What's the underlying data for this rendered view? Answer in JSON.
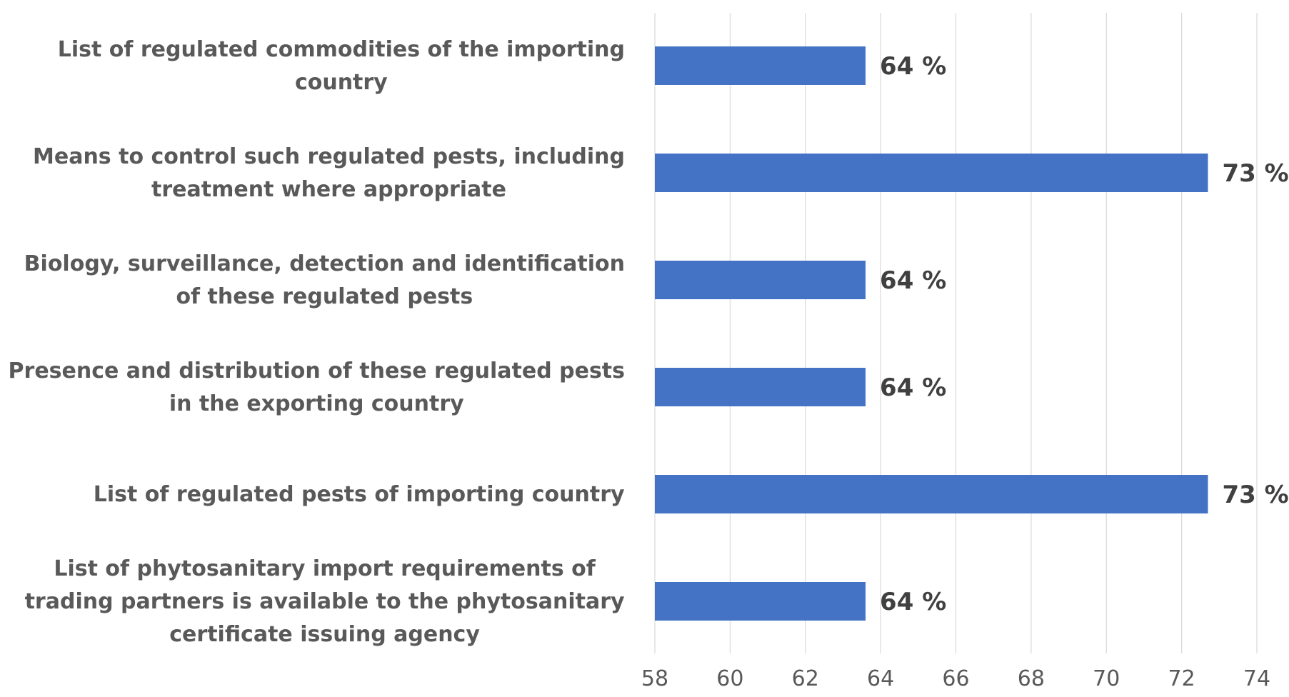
{
  "chart_data": {
    "type": "bar",
    "orientation": "horizontal",
    "categories": [
      [
        "List of regulated commodities of the importing",
        "country"
      ],
      [
        "Means to control such regulated pests, including",
        "treatment where appropriate"
      ],
      [
        "Biology, surveillance, detection and identification",
        "of these regulated pests"
      ],
      [
        "Presence and distribution of these regulated pests",
        "in the exporting country"
      ],
      [
        "List of regulated pests of importing country"
      ],
      [
        "List of phytosanitary import requirements of",
        "trading partners is available to the phytosanitary",
        "certificate issuing agency"
      ]
    ],
    "values": [
      63.6,
      72.7,
      63.6,
      63.6,
      72.7,
      63.6
    ],
    "data_labels": [
      "64 %",
      "73 %",
      "64 %",
      "64 %",
      "73 %",
      "64 %"
    ],
    "xlim": [
      58,
      74
    ],
    "xticks": [
      "58",
      "60",
      "62",
      "64",
      "66",
      "68",
      "70",
      "72",
      "74"
    ],
    "grid": true,
    "bar_color": "#4472c4",
    "title": "",
    "xlabel": "",
    "ylabel": ""
  }
}
